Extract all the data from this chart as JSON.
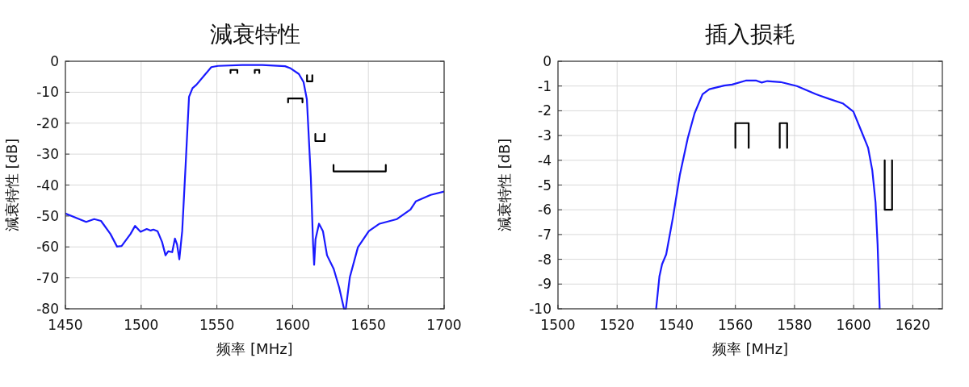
{
  "chart_data": [
    {
      "type": "line",
      "title": "減衰特性",
      "xlabel": "频率 [MHz]",
      "ylabel": "減衰特性 [dB]",
      "xlim": [
        1450,
        1700
      ],
      "ylim": [
        -80,
        0
      ],
      "xticks": [
        1450,
        1500,
        1550,
        1600,
        1650,
        1700
      ],
      "yticks": [
        0,
        -10,
        -20,
        -30,
        -40,
        -50,
        -60,
        -70,
        -80
      ],
      "grid": true,
      "series": [
        {
          "color": "#1a1aff",
          "x": [
            1450,
            1463.7,
            1469,
            1473.5,
            1479.7,
            1484.1,
            1487.1,
            1493,
            1496,
            1499.6,
            1503.7,
            1506.3,
            1508.1,
            1510.8,
            1513.8,
            1516.1,
            1517.9,
            1520.5,
            1522.3,
            1523.7,
            1525.2,
            1527.1,
            1529.4,
            1531.6,
            1533.9,
            1536.5,
            1541.8,
            1546.3,
            1550.7,
            1566.7,
            1580,
            1595,
            1598.7,
            1604.1,
            1607.2,
            1609.4,
            1612,
            1613.5,
            1614.2,
            1615.1,
            1617.4,
            1620,
            1622.7,
            1627.1,
            1630.7,
            1633.9,
            1635.1,
            1637.8,
            1643.1,
            1650.3,
            1657.4,
            1668.9,
            1677.8,
            1681.3,
            1691.1,
            1700
          ],
          "values": [
            -49.2,
            -51.9,
            -51,
            -51.6,
            -55.8,
            -59.9,
            -59.7,
            -55.8,
            -53.2,
            -55.1,
            -54.2,
            -54.7,
            -54.4,
            -54.9,
            -58.4,
            -62.7,
            -61.4,
            -61.7,
            -57.3,
            -59.2,
            -64,
            -54.9,
            -33.2,
            -11.5,
            -8.7,
            -7.6,
            -4.5,
            -1.9,
            -1.5,
            -1.2,
            -1.2,
            -1.6,
            -2.3,
            -4.1,
            -6.7,
            -12.3,
            -37.5,
            -59.2,
            -65.8,
            -57.5,
            -52.5,
            -54.9,
            -62.7,
            -67.1,
            -73.1,
            -80,
            -80,
            -69.7,
            -60.1,
            -54.9,
            -52.5,
            -51,
            -47.9,
            -45.3,
            -43.2,
            -42.1
          ]
        },
        {
          "color": "#000000",
          "x": [
            1559,
            1559,
            1563.5,
            1563.5
          ],
          "values": [
            -3.8,
            -2.8,
            -2.8,
            -3.8
          ]
        },
        {
          "color": "#000000",
          "x": [
            1575,
            1575,
            1578,
            1578
          ],
          "values": [
            -3.8,
            -2.8,
            -2.8,
            -3.8
          ]
        },
        {
          "color": "#000000",
          "x": [
            1609.5,
            1609.5,
            1613,
            1613
          ],
          "values": [
            -4.5,
            -6.5,
            -6.5,
            -4.5
          ]
        },
        {
          "color": "#000000",
          "x": [
            1597,
            1597,
            1606.5,
            1606.5
          ],
          "values": [
            -13.3,
            -12,
            -12,
            -13.3
          ]
        },
        {
          "color": "#000000",
          "x": [
            1615,
            1615,
            1621,
            1621
          ],
          "values": [
            -23.5,
            -25.8,
            -25.8,
            -23.5
          ]
        },
        {
          "color": "#000000",
          "x": [
            1627,
            1627,
            1661.5,
            1661.5
          ],
          "values": [
            -33.5,
            -35.6,
            -35.6,
            -33.5
          ]
        }
      ]
    },
    {
      "type": "line",
      "title": "插入损耗",
      "xlabel": "频率 [MHz]",
      "ylabel": "減衰特性 [dB]",
      "xlim": [
        1500,
        1630
      ],
      "ylim": [
        -10,
        0
      ],
      "xticks": [
        1500,
        1520,
        1540,
        1560,
        1580,
        1600,
        1620
      ],
      "yticks": [
        0,
        -1,
        -2,
        -3,
        -4,
        -5,
        -6,
        -7,
        -8,
        -9,
        -10
      ],
      "grid": true,
      "series": [
        {
          "color": "#1a1aff",
          "x": [
            1533.2,
            1534.3,
            1535.2,
            1536.6,
            1538.9,
            1541.2,
            1543.9,
            1546.2,
            1548.9,
            1551.2,
            1556.2,
            1558.9,
            1563.5,
            1567.1,
            1568.9,
            1570.8,
            1575.3,
            1580.8,
            1587.2,
            1591.7,
            1596.3,
            1599.9,
            1602.7,
            1604.9,
            1606.3,
            1607.4,
            1608.1,
            1608.8
          ],
          "values": [
            -10,
            -8.7,
            -8.2,
            -7.8,
            -6.3,
            -4.6,
            -3.1,
            -2.1,
            -1.33,
            -1.13,
            -0.98,
            -0.94,
            -0.78,
            -0.78,
            -0.86,
            -0.8,
            -0.84,
            -1,
            -1.33,
            -1.52,
            -1.7,
            -2.03,
            -2.85,
            -3.5,
            -4.4,
            -5.7,
            -7.4,
            -10
          ]
        },
        {
          "color": "#000000",
          "x": [
            1560,
            1560,
            1564.5,
            1564.5
          ],
          "values": [
            -3.5,
            -2.5,
            -2.5,
            -3.5
          ]
        },
        {
          "color": "#000000",
          "x": [
            1575,
            1575,
            1577.5,
            1577.5
          ],
          "values": [
            -3.5,
            -2.5,
            -2.5,
            -3.5
          ]
        },
        {
          "color": "#000000",
          "x": [
            1610.5,
            1610.5,
            1613,
            1613
          ],
          "values": [
            -4,
            -6,
            -6,
            -4
          ]
        }
      ]
    }
  ]
}
